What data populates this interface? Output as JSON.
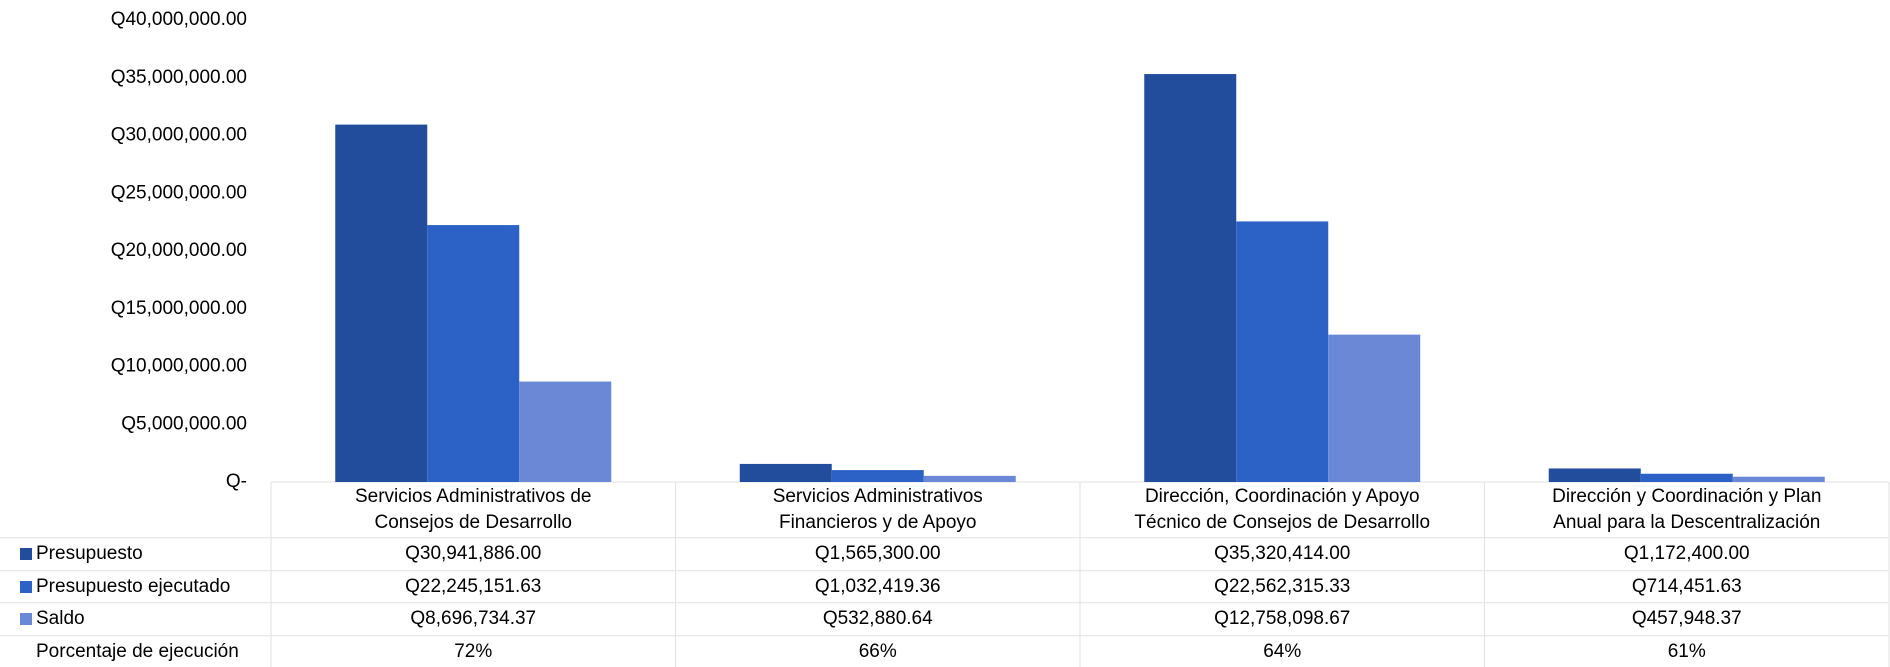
{
  "chart_data": {
    "type": "bar",
    "categories": [
      [
        "Servicios Administrativos de",
        "Consejos de Desarrollo"
      ],
      [
        "Servicios Administrativos",
        "Financieros y de Apoyo"
      ],
      [
        "Dirección, Coordinación y Apoyo",
        "Técnico de Consejos de Desarrollo"
      ],
      [
        "Dirección y Coordinación y Plan",
        "Anual para la Descentralización"
      ]
    ],
    "series": [
      {
        "name": "Presupuesto",
        "color": "#224c9c",
        "values": [
          30941886.0,
          1565300.0,
          35320414.0,
          1172400.0
        ],
        "value_labels": [
          "Q30,941,886.00",
          "Q1,565,300.00",
          "Q35,320,414.00",
          "Q1,172,400.00"
        ]
      },
      {
        "name": "Presupuesto ejecutado",
        "color": "#2c62c6",
        "values": [
          22245151.63,
          1032419.36,
          22562315.33,
          714451.63
        ],
        "value_labels": [
          "Q22,245,151.63",
          "Q1,032,419.36",
          "Q22,562,315.33",
          "Q714,451.63"
        ]
      },
      {
        "name": "Saldo",
        "color": "#6a88d6",
        "values": [
          8696734.37,
          532880.64,
          12758098.67,
          457948.37
        ],
        "value_labels": [
          "Q8,696,734.37",
          "Q532,880.64",
          "Q12,758,098.67",
          "Q457,948.37"
        ]
      }
    ],
    "extra_row": {
      "name": "Porcentaje de ejecución",
      "values": [
        72,
        66,
        64,
        61
      ],
      "value_labels": [
        "72%",
        "66%",
        "64%",
        "61%"
      ]
    },
    "ylim": [
      0,
      40000000
    ],
    "yticks": [
      {
        "value": 0,
        "label": "Q-"
      },
      {
        "value": 5000000,
        "label": "Q5,000,000.00"
      },
      {
        "value": 10000000,
        "label": "Q10,000,000.00"
      },
      {
        "value": 15000000,
        "label": "Q15,000,000.00"
      },
      {
        "value": 20000000,
        "label": "Q20,000,000.00"
      },
      {
        "value": 25000000,
        "label": "Q25,000,000.00"
      },
      {
        "value": 30000000,
        "label": "Q30,000,000.00"
      },
      {
        "value": 35000000,
        "label": "Q35,000,000.00"
      },
      {
        "value": 40000000,
        "label": "Q40,000,000.00"
      }
    ],
    "grid": false
  }
}
